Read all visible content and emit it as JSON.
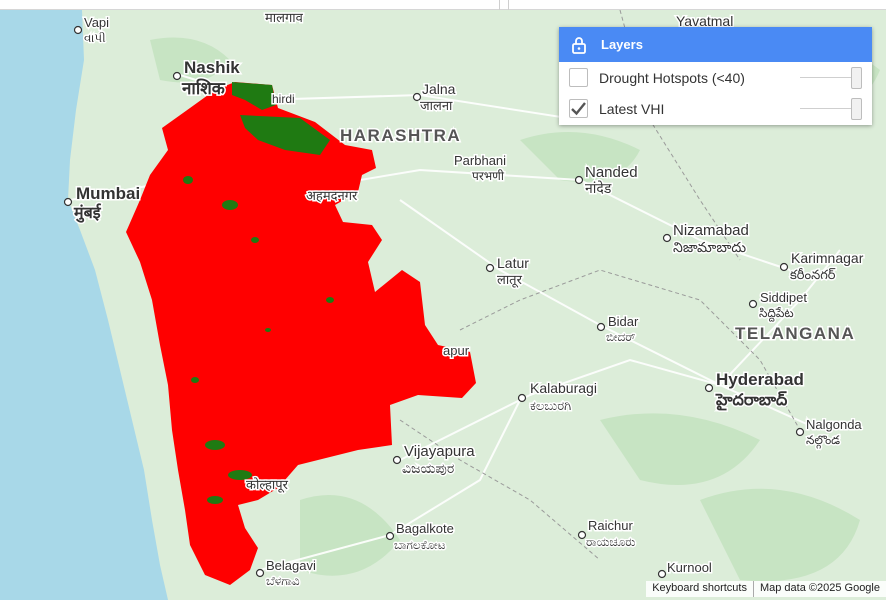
{
  "map": {
    "colors": {
      "sea": "#a8d8e8",
      "land": "#dcedd9",
      "drought": "#ff0000",
      "healthy": "#1f7a12",
      "road": "#ffffff",
      "text": "#333333"
    },
    "cities": [
      {
        "name": "Vapi",
        "local": "વાપી"
      },
      {
        "name": "",
        "local": "मालगाव"
      },
      {
        "name": "Yavatmal",
        "local": ""
      },
      {
        "name": "Nashik",
        "local": "नाशिक"
      },
      {
        "name": "",
        "local": "hirdi"
      },
      {
        "name": "Jalna",
        "local": "जालना"
      },
      {
        "name": "HARASHTRA",
        "local": ""
      },
      {
        "name": "Parbhani",
        "local": "परभणी"
      },
      {
        "name": "Nanded",
        "local": "नांदेड"
      },
      {
        "name": "Mumbai",
        "local": "मुंबई"
      },
      {
        "name": "",
        "local": "अहमदनगर"
      },
      {
        "name": "Nizamabad",
        "local": "నిజామాబాదు"
      },
      {
        "name": "Karimnagar",
        "local": "కరీంనగర్"
      },
      {
        "name": "Latur",
        "local": "लातूर"
      },
      {
        "name": "Siddipet",
        "local": "సిద్దిపేట"
      },
      {
        "name": "Bidar",
        "local": "ಬೀದರ್"
      },
      {
        "name": "TELANGANA",
        "local": ""
      },
      {
        "name": "apur",
        "local": ""
      },
      {
        "name": "Hyderabad",
        "local": "హైదరాబాద్"
      },
      {
        "name": "Kalaburagi",
        "local": "ಕಲಬುರಗಿ"
      },
      {
        "name": "Nalgonda",
        "local": "నల్గొండ"
      },
      {
        "name": "Vijayapura",
        "local": "ವಿಜಯಪುರ"
      },
      {
        "name": "",
        "local": "कोल्हापूर"
      },
      {
        "name": "Bagalkote",
        "local": "ಬಾಗಲಕೋಟ"
      },
      {
        "name": "Raichur",
        "local": "ರಾಯಚೂರು"
      },
      {
        "name": "Belagavi",
        "local": "ಬೆಳಗಾವಿ"
      },
      {
        "name": "Kurnool",
        "local": ""
      }
    ]
  },
  "layers_panel": {
    "title": "Layers",
    "icon": "lock-icon",
    "items": [
      {
        "label": "Drought Hotspots (<40)",
        "checked": false
      },
      {
        "label": "Latest VHI",
        "checked": true
      }
    ]
  },
  "attribution": {
    "shortcuts": "Keyboard shortcuts",
    "map_data": "Map data ©2025 Google"
  }
}
